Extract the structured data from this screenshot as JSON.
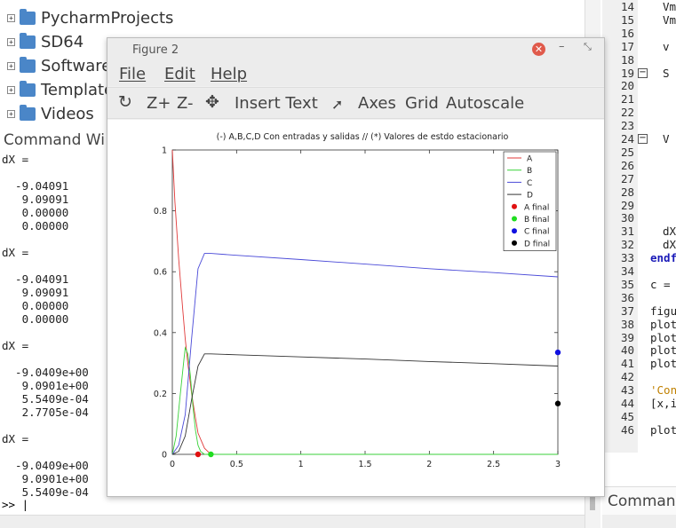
{
  "file_tree": {
    "items": [
      {
        "label": "PycharmProjects"
      },
      {
        "label": "SD64"
      },
      {
        "label": "Software"
      },
      {
        "label": "Templates"
      },
      {
        "label": "Videos"
      }
    ]
  },
  "command_window": {
    "title": "Command Wi",
    "lines": [
      "dX =",
      "",
      "  -9.04091",
      "   9.09091",
      "   0.00000",
      "   0.00000",
      "",
      "dX =",
      "",
      "  -9.04091",
      "   9.09091",
      "   0.00000",
      "   0.00000",
      "",
      "dX =",
      "",
      "  -9.0409e+00",
      "   9.0901e+00",
      "   5.5409e-04",
      "   2.7705e-04",
      "",
      "dX =",
      "",
      "  -9.0409e+00",
      "   9.0901e+00",
      "   5.5409e-04"
    ],
    "prompt": ">> |"
  },
  "editor": {
    "lines": [
      {
        "n": "14",
        "code": "Vm"
      },
      {
        "n": "15",
        "code": "Vm"
      },
      {
        "n": "16",
        "code": ""
      },
      {
        "n": "17",
        "code": "v "
      },
      {
        "n": "18",
        "code": ""
      },
      {
        "n": "19",
        "code": "S "
      },
      {
        "n": "20",
        "code": ""
      },
      {
        "n": "21",
        "code": ""
      },
      {
        "n": "22",
        "code": ""
      },
      {
        "n": "23",
        "code": ""
      },
      {
        "n": "24",
        "code": "V "
      },
      {
        "n": "25",
        "code": ""
      },
      {
        "n": "26",
        "code": ""
      },
      {
        "n": "27",
        "code": ""
      },
      {
        "n": "28",
        "code": ""
      },
      {
        "n": "29",
        "code": ""
      },
      {
        "n": "30",
        "code": ""
      },
      {
        "n": "31",
        "code": "dX"
      },
      {
        "n": "32",
        "code": "dX"
      },
      {
        "n": "33",
        "code": "endf"
      },
      {
        "n": "34",
        "code": ""
      },
      {
        "n": "35",
        "code": "c = "
      },
      {
        "n": "36",
        "code": ""
      },
      {
        "n": "37",
        "code": "figu"
      },
      {
        "n": "38",
        "code": "plot"
      },
      {
        "n": "39",
        "code": "plot"
      },
      {
        "n": "40",
        "code": "plot"
      },
      {
        "n": "41",
        "code": "plot"
      },
      {
        "n": "42",
        "code": ""
      },
      {
        "n": "43",
        "code": "'Con"
      },
      {
        "n": "44",
        "code": "[x,i"
      },
      {
        "n": "45",
        "code": ""
      },
      {
        "n": "46",
        "code": "plot"
      }
    ],
    "command_label": "Command"
  },
  "figure": {
    "window_title": "Figure 2",
    "menu": {
      "file": "File",
      "edit": "Edit",
      "help": "Help"
    },
    "toolbar": {
      "zoom_in": "Z+",
      "zoom_out": "Z-",
      "insert_text": "Insert Text",
      "axes": "Axes",
      "grid": "Grid",
      "autoscale": "Autoscale"
    }
  },
  "chart_data": {
    "type": "line",
    "title": "(-) A,B,C,D Con entradas y salidas //  (*) Valores de estdo estacionario",
    "xlabel": "",
    "ylabel": "",
    "xlim": [
      0,
      3
    ],
    "ylim": [
      0,
      1
    ],
    "xticks": [
      "0",
      "0.5",
      "1",
      "1.5",
      "2",
      "2.5",
      "3"
    ],
    "yticks": [
      "0",
      "0.2",
      "0.4",
      "0.6",
      "0.8",
      "1"
    ],
    "legend_position": "top-right",
    "grid": false,
    "series": [
      {
        "name": "A",
        "color": "#e03a3a",
        "x": [
          0,
          0.02,
          0.05,
          0.08,
          0.1,
          0.12,
          0.15,
          0.18,
          0.2,
          0.25,
          0.3,
          3
        ],
        "y": [
          1,
          0.83,
          0.64,
          0.48,
          0.38,
          0.3,
          0.2,
          0.12,
          0.07,
          0.02,
          0,
          0
        ]
      },
      {
        "name": "B",
        "color": "#3ad23a",
        "x": [
          0,
          0.03,
          0.06,
          0.09,
          0.1,
          0.12,
          0.14,
          0.16,
          0.18,
          0.2,
          0.22,
          0.25,
          0.3,
          3
        ],
        "y": [
          0,
          0.06,
          0.19,
          0.31,
          0.35,
          0.33,
          0.26,
          0.16,
          0.08,
          0.03,
          0.01,
          0,
          0,
          0
        ]
      },
      {
        "name": "C",
        "color": "#4a4ad8",
        "x": [
          0,
          0.05,
          0.1,
          0.15,
          0.2,
          0.25,
          0.3,
          0.5,
          1,
          1.5,
          2,
          2.5,
          3
        ],
        "y": [
          0,
          0.03,
          0.13,
          0.38,
          0.61,
          0.66,
          0.66,
          0.654,
          0.64,
          0.625,
          0.61,
          0.597,
          0.583
        ]
      },
      {
        "name": "D",
        "color": "#333333",
        "x": [
          0,
          0.05,
          0.1,
          0.15,
          0.2,
          0.25,
          0.3,
          0.5,
          1,
          1.5,
          2,
          2.5,
          3
        ],
        "y": [
          0,
          0.01,
          0.06,
          0.18,
          0.29,
          0.33,
          0.33,
          0.327,
          0.32,
          0.313,
          0.305,
          0.298,
          0.29
        ]
      }
    ],
    "final_points": [
      {
        "name": "A final",
        "color": "#e01010",
        "x": 0.2,
        "y": 0
      },
      {
        "name": "B final",
        "color": "#20dd20",
        "x": 0.3,
        "y": 0
      },
      {
        "name": "C final",
        "color": "#1010e0",
        "x": 3,
        "y": 0.335
      },
      {
        "name": "D final",
        "color": "#000000",
        "x": 3,
        "y": 0.167
      }
    ]
  }
}
